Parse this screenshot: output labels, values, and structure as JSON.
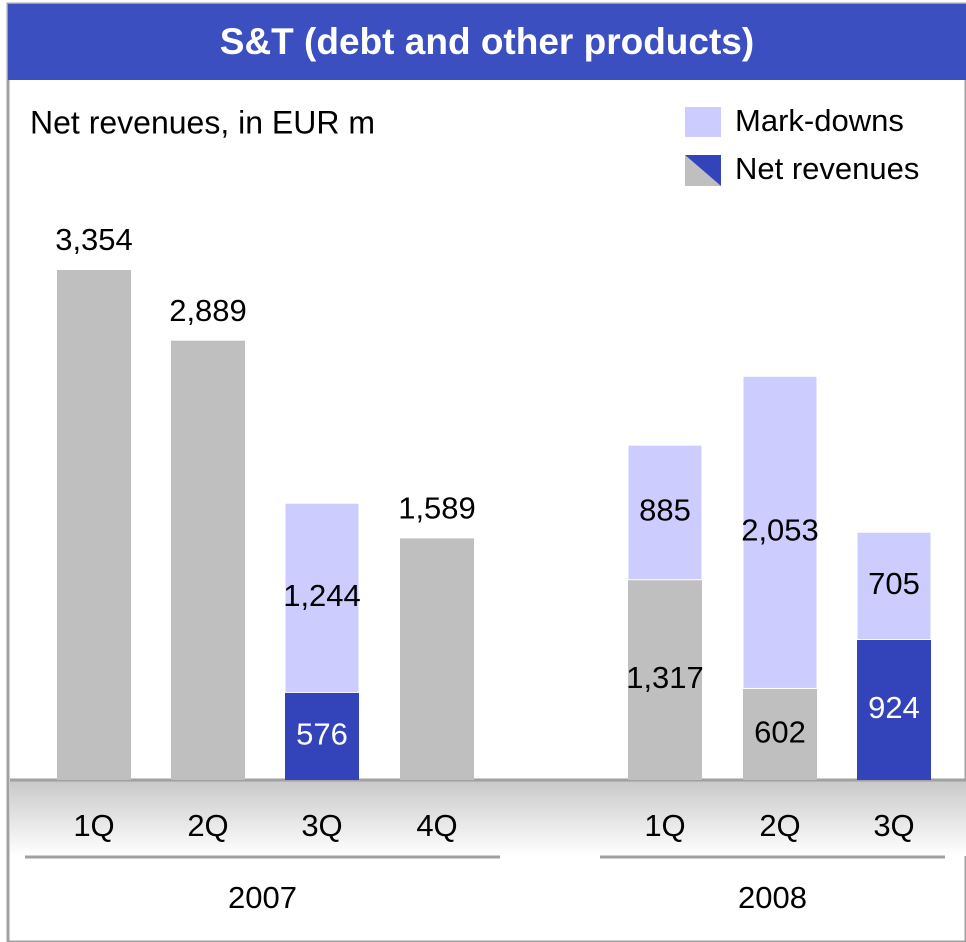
{
  "chart_data": {
    "type": "stacked_bar",
    "title": "S&T (debt and other products)",
    "subtitle": "Net revenues, in EUR m",
    "groups": [
      {
        "name": "2007",
        "categories": [
          "1Q",
          "2Q",
          "3Q",
          "4Q"
        ]
      },
      {
        "name": "2008",
        "categories": [
          "1Q",
          "2Q",
          "3Q"
        ]
      }
    ],
    "series": [
      {
        "name": "Net revenues",
        "colors": [
          "#bfbfbf",
          "#bfbfbf",
          "#3344bb",
          "#bfbfbf",
          "#bfbfbf",
          "#bfbfbf",
          "#3344bb"
        ],
        "values": [
          3354,
          2889,
          576,
          1589,
          1317,
          602,
          924
        ],
        "value_labels": [
          "3,354",
          "2,889",
          "576",
          "1,589",
          "1,317",
          "602",
          "924"
        ]
      },
      {
        "name": "Mark-downs",
        "color": "#ccccff",
        "values": [
          null,
          null,
          1244,
          null,
          885,
          2053,
          705
        ],
        "value_labels": [
          null,
          null,
          "1,244",
          null,
          "885",
          "2,053",
          "705"
        ]
      }
    ]
  }
}
